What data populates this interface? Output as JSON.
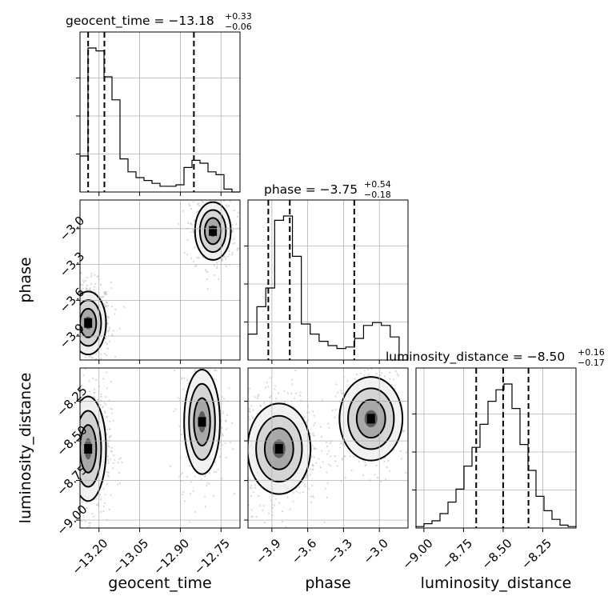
{
  "chart_data": {
    "type": "corner",
    "parameters": [
      "geocent_time",
      "phase",
      "luminosity_distance"
    ],
    "titles": [
      {
        "param": "geocent_time",
        "text": "geocent_time = −13.18",
        "plus": "+0.33",
        "minus": "−0.06"
      },
      {
        "param": "phase",
        "text": "phase = −3.75",
        "plus": "+0.54",
        "minus": "−0.18"
      },
      {
        "param": "luminosity_distance",
        "text": "luminosity_distance = −8.50",
        "plus": "+0.16",
        "minus": "−0.17"
      }
    ],
    "ranges": {
      "geocent_time": [
        -13.27,
        -12.68
      ],
      "phase": [
        -4.1,
        -2.76
      ],
      "luminosity_distance": [
        -9.05,
        -8.04
      ]
    },
    "ticks": {
      "geocent_time": {
        "values": [
          -13.2,
          -13.05,
          -12.9,
          -12.75
        ],
        "labels": [
          "−13.20",
          "−13.05",
          "−12.90",
          "−12.75"
        ]
      },
      "phase": {
        "values": [
          -3.9,
          -3.6,
          -3.3,
          -3.0
        ],
        "labels": [
          "−3.9",
          "−3.6",
          "−3.3",
          "−3.0"
        ]
      },
      "luminosity_distance": {
        "values": [
          -9.0,
          -8.75,
          -8.5,
          -8.25
        ],
        "labels": [
          "−9.00",
          "−8.75",
          "−8.50",
          "−8.25"
        ]
      }
    },
    "quantiles": {
      "geocent_time": [
        -13.24,
        -13.18,
        -12.85
      ],
      "phase": [
        -3.93,
        -3.75,
        -3.21
      ],
      "luminosity_distance": [
        -8.67,
        -8.5,
        -8.34
      ]
    },
    "histograms": {
      "geocent_time": [
        0.25,
        1.0,
        0.98,
        0.8,
        0.64,
        0.23,
        0.14,
        0.1,
        0.08,
        0.06,
        0.04,
        0.04,
        0.05,
        0.17,
        0.22,
        0.2,
        0.14,
        0.12,
        0.02,
        0.0
      ],
      "phase": [
        0.18,
        0.37,
        0.5,
        0.97,
        1.0,
        0.72,
        0.25,
        0.18,
        0.13,
        0.1,
        0.08,
        0.09,
        0.15,
        0.24,
        0.26,
        0.24,
        0.16,
        0.0
      ],
      "luminosity_distance": [
        0.01,
        0.03,
        0.05,
        0.1,
        0.18,
        0.27,
        0.43,
        0.56,
        0.72,
        0.88,
        0.96,
        1.0,
        0.83,
        0.58,
        0.4,
        0.22,
        0.12,
        0.06,
        0.02,
        0.01
      ]
    },
    "density_clusters": [
      {
        "x": "geocent_time",
        "y": "phase",
        "center": [
          -13.24,
          -3.79
        ],
        "spread": [
          0.03,
          0.12
        ],
        "n": 700
      },
      {
        "x": "geocent_time",
        "y": "phase",
        "center": [
          -12.78,
          -3.02
        ],
        "spread": [
          0.03,
          0.11
        ],
        "n": 350
      },
      {
        "x": "geocent_time",
        "y": "luminosity_distance",
        "center": [
          -13.24,
          -8.55
        ],
        "spread": [
          0.03,
          0.15
        ],
        "n": 700
      },
      {
        "x": "geocent_time",
        "y": "luminosity_distance",
        "center": [
          -12.82,
          -8.38
        ],
        "spread": [
          0.03,
          0.15
        ],
        "n": 350
      },
      {
        "x": "phase",
        "y": "luminosity_distance",
        "center": [
          -3.84,
          -8.55
        ],
        "spread": [
          0.12,
          0.13
        ],
        "n": 700
      },
      {
        "x": "phase",
        "y": "luminosity_distance",
        "center": [
          -3.07,
          -8.36
        ],
        "spread": [
          0.12,
          0.12
        ],
        "n": 350
      }
    ]
  }
}
